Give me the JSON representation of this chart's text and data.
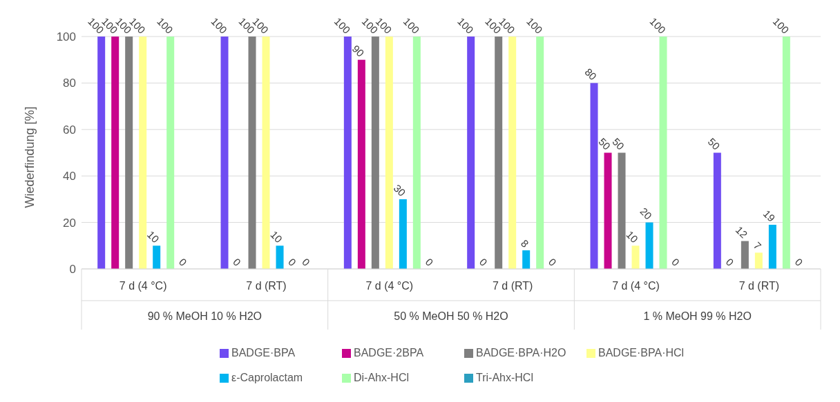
{
  "chart_data": {
    "type": "bar",
    "ylabel": "Wiederfindung [%]",
    "categories": [
      "7 d (4 °C)",
      "7 d (RT)",
      "7 d (4 °C)",
      "7 d (RT)",
      "7 d (4 °C)",
      "7 d (RT)"
    ],
    "annotations": [
      "90 % MeOH 10 % H2O",
      "50 % MeOH 50 % H2O",
      "1 % MeOH 99 % H2O"
    ],
    "series": [
      {
        "name": "BADGE·BPA",
        "color": "#6f4cf2",
        "values": [
          100,
          100,
          100,
          100,
          80,
          50
        ]
      },
      {
        "name": "BADGE·2BPA",
        "color": "#c8058c",
        "values": [
          100,
          0,
          90,
          0,
          50,
          0
        ]
      },
      {
        "name": "BADGE·BPA·H2O",
        "color": "#7f7f7f",
        "values": [
          100,
          100,
          100,
          100,
          50,
          12
        ]
      },
      {
        "name": "BADGE·BPA·HCl",
        "color": "#ffff8f",
        "values": [
          100,
          100,
          100,
          100,
          10,
          7
        ]
      },
      {
        "name": "ε-Caprolactam",
        "color": "#00b4f0",
        "values": [
          10,
          10,
          30,
          8,
          20,
          19
        ]
      },
      {
        "name": "Di-Ahx-HCl",
        "color": "#a9ffaa",
        "values": [
          100,
          0,
          100,
          100,
          100,
          100
        ]
      },
      {
        "name": "Tri-Ahx-HCl",
        "color": "#2b9fc0",
        "values": [
          0,
          0,
          0,
          0,
          0,
          0
        ]
      }
    ],
    "ylim": [
      0,
      100
    ],
    "yticks": [
      0,
      20,
      40,
      60,
      80,
      100
    ],
    "grid": "y",
    "legend": "bottom",
    "data_labels": true
  }
}
